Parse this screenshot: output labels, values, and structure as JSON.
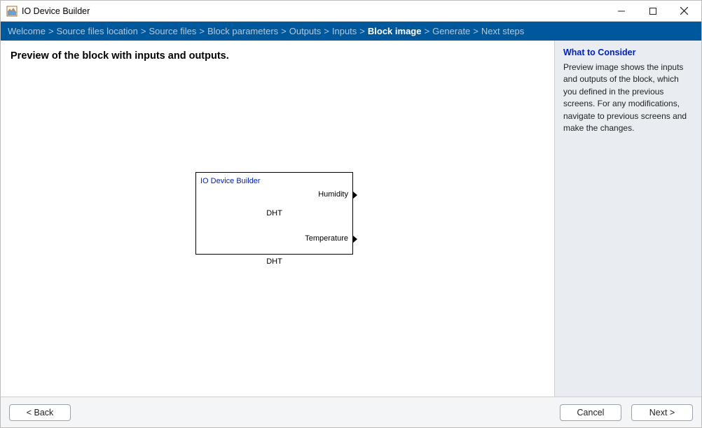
{
  "window": {
    "title": "IO Device Builder"
  },
  "breadcrumb": [
    {
      "label": "Welcome",
      "active": false
    },
    {
      "label": "Source files location",
      "active": false
    },
    {
      "label": "Source files",
      "active": false
    },
    {
      "label": "Block parameters",
      "active": false
    },
    {
      "label": "Outputs",
      "active": false
    },
    {
      "label": "Inputs",
      "active": false
    },
    {
      "label": "Block image",
      "active": true
    },
    {
      "label": "Generate",
      "active": false
    },
    {
      "label": "Next steps",
      "active": false
    }
  ],
  "main": {
    "heading": "Preview of the block with inputs and outputs."
  },
  "block": {
    "inner_title": "IO Device Builder",
    "center_label": "DHT",
    "bottom_label": "DHT",
    "outputs": [
      {
        "label": "Humidity"
      },
      {
        "label": "Temperature"
      }
    ]
  },
  "side": {
    "title": "What to Consider",
    "text": "Preview image shows the inputs and outputs of the block, which you defined in the previous screens. For any modifications, navigate to previous screens and make the changes."
  },
  "footer": {
    "back": "< Back",
    "cancel": "Cancel",
    "next": "Next >"
  },
  "colors": {
    "breadcrumb_bg": "#00589c",
    "breadcrumb_text": "#b0c8df",
    "breadcrumb_active": "#ffffff",
    "side_bg": "#e9edf2",
    "side_title": "#0020bb",
    "button_border": "#9aa2ad"
  }
}
